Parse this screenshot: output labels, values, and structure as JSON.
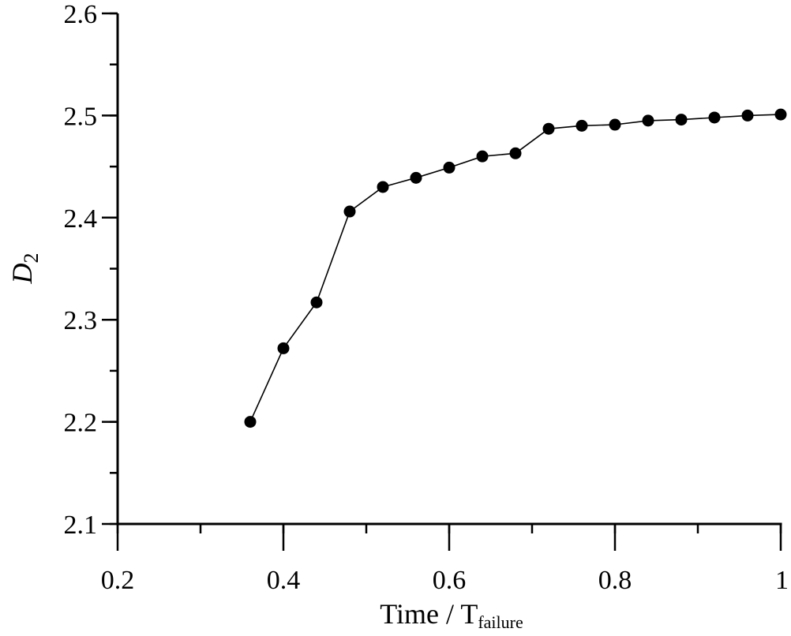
{
  "chart_data": {
    "type": "line",
    "title": "",
    "xlabel": "Time / T",
    "xlabel_subscript": "failure",
    "ylabel": "D",
    "ylabel_subscript": "2",
    "xlim": [
      0.2,
      1.0
    ],
    "ylim": [
      2.1,
      2.6
    ],
    "x_major_ticks": [
      0.2,
      0.4,
      0.6,
      0.8,
      1.0
    ],
    "x_tick_labels": [
      "0.2",
      "0.4",
      "0.6",
      "0.8",
      "1"
    ],
    "x_minor_step": 0.1,
    "y_major_ticks": [
      2.1,
      2.2,
      2.3,
      2.4,
      2.5,
      2.6
    ],
    "y_tick_labels": [
      "2.1",
      "2.2",
      "2.3",
      "2.4",
      "2.5",
      "2.6"
    ],
    "y_minor_step": 0.05,
    "grid": false,
    "legend": "none",
    "series": [
      {
        "color": "#000000",
        "marker": "filled-circle",
        "x": [
          0.36,
          0.4,
          0.44,
          0.48,
          0.52,
          0.56,
          0.6,
          0.64,
          0.68,
          0.72,
          0.76,
          0.8,
          0.84,
          0.88,
          0.92,
          0.96,
          1.0
        ],
        "y": [
          2.2,
          2.272,
          2.317,
          2.406,
          2.43,
          2.439,
          2.449,
          2.46,
          2.463,
          2.487,
          2.49,
          2.491,
          2.495,
          2.496,
          2.498,
          2.5,
          2.501
        ]
      }
    ]
  }
}
